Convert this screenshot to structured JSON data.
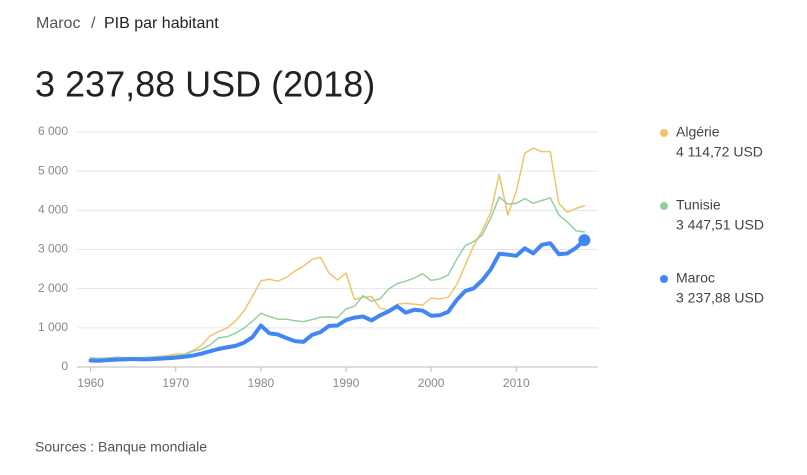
{
  "breadcrumb": {
    "parent": "Maroc",
    "separator": "/",
    "current": "PIB par habitant"
  },
  "headline": "3 237,88 USD (2018)",
  "source": "Sources : Banque mondiale",
  "chart_data": {
    "type": "line",
    "x": [
      1960,
      1961,
      1962,
      1963,
      1964,
      1965,
      1966,
      1967,
      1968,
      1969,
      1970,
      1971,
      1972,
      1973,
      1974,
      1975,
      1976,
      1977,
      1978,
      1979,
      1980,
      1981,
      1982,
      1983,
      1984,
      1985,
      1986,
      1987,
      1988,
      1989,
      1990,
      1991,
      1992,
      1993,
      1994,
      1995,
      1996,
      1997,
      1998,
      1999,
      2000,
      2001,
      2002,
      2003,
      2004,
      2005,
      2006,
      2007,
      2008,
      2009,
      2010,
      2011,
      2012,
      2013,
      2014,
      2015,
      2016,
      2017,
      2018
    ],
    "xlim": [
      1958.4,
      2019.6
    ],
    "xticks": [
      1960,
      1970,
      1980,
      1990,
      2000,
      2010
    ],
    "ylim": [
      0,
      6000
    ],
    "yticks": [
      {
        "value": 0,
        "label": "0"
      },
      {
        "value": 1000,
        "label": "1 000"
      },
      {
        "value": 2000,
        "label": "2 000"
      },
      {
        "value": 3000,
        "label": "3 000"
      },
      {
        "value": 4000,
        "label": "4 000"
      },
      {
        "value": 5000,
        "label": "5 000"
      },
      {
        "value": 6000,
        "label": "6 000"
      }
    ],
    "grid": true,
    "series": [
      {
        "name": "Algérie",
        "color": "#efc46b",
        "width": 1.5,
        "values": [
          240,
          210,
          170,
          210,
          230,
          240,
          230,
          245,
          270,
          290,
          330,
          330,
          420,
          550,
          790,
          900,
          990,
          1170,
          1430,
          1800,
          2200,
          2240,
          2190,
          2290,
          2450,
          2570,
          2750,
          2800,
          2400,
          2220,
          2400,
          1720,
          1780,
          1800,
          1500,
          1450,
          1600,
          1630,
          1600,
          1580,
          1760,
          1740,
          1780,
          2100,
          2600,
          3100,
          3480,
          3950,
          4920,
          3880,
          4480,
          5460,
          5590,
          5500,
          5500,
          4180,
          3950,
          4050,
          4114.72
        ],
        "value_labels": [
          null,
          null,
          null,
          null,
          null,
          null,
          null,
          null,
          null,
          null,
          null,
          null,
          null,
          null,
          null,
          null,
          null,
          null,
          null,
          null,
          null,
          null,
          null,
          null,
          null,
          null,
          null,
          null,
          null,
          null,
          null,
          null,
          null,
          null,
          null,
          null,
          null,
          null,
          null,
          null,
          null,
          null,
          null,
          null,
          null,
          null,
          null,
          null,
          null,
          null,
          null,
          null,
          null,
          null,
          null,
          null,
          null,
          null,
          "4 114,72 USD"
        ]
      },
      {
        "name": "Tunisie",
        "color": "#94cfa0",
        "width": 1.5,
        "values": [
          210,
          220,
          230,
          250,
          240,
          230,
          240,
          250,
          260,
          270,
          280,
          310,
          400,
          450,
          560,
          740,
          770,
          860,
          990,
          1170,
          1370,
          1290,
          1220,
          1220,
          1180,
          1160,
          1210,
          1270,
          1280,
          1260,
          1480,
          1550,
          1820,
          1680,
          1740,
          1990,
          2130,
          2190,
          2270,
          2380,
          2210,
          2250,
          2350,
          2750,
          3100,
          3200,
          3370,
          3800,
          4340,
          4160,
          4180,
          4300,
          4180,
          4250,
          4320,
          3880,
          3700,
          3480,
          3447.51
        ],
        "value_labels": [
          null,
          null,
          null,
          null,
          null,
          null,
          null,
          null,
          null,
          null,
          null,
          null,
          null,
          null,
          null,
          null,
          null,
          null,
          null,
          null,
          null,
          null,
          null,
          null,
          null,
          null,
          null,
          null,
          null,
          null,
          null,
          null,
          null,
          null,
          null,
          null,
          null,
          null,
          null,
          null,
          null,
          null,
          null,
          null,
          null,
          null,
          null,
          null,
          null,
          null,
          null,
          null,
          null,
          null,
          null,
          null,
          null,
          null,
          "3 447,51 USD"
        ]
      },
      {
        "name": "Maroc",
        "color": "#4285f4",
        "width": 4,
        "values": [
          165,
          160,
          175,
          190,
          195,
          205,
          195,
          200,
          210,
          225,
          240,
          260,
          290,
          340,
          400,
          460,
          500,
          540,
          620,
          760,
          1060,
          860,
          830,
          740,
          660,
          640,
          820,
          890,
          1050,
          1060,
          1200,
          1260,
          1290,
          1190,
          1320,
          1420,
          1550,
          1390,
          1460,
          1440,
          1310,
          1320,
          1410,
          1710,
          1940,
          2010,
          2210,
          2490,
          2890,
          2870,
          2840,
          3030,
          2900,
          3120,
          3160,
          2880,
          2900,
          3040,
          3237.88
        ],
        "value_labels": [
          null,
          null,
          null,
          null,
          null,
          null,
          null,
          null,
          null,
          null,
          null,
          null,
          null,
          null,
          null,
          null,
          null,
          null,
          null,
          null,
          null,
          null,
          null,
          null,
          null,
          null,
          null,
          null,
          null,
          null,
          null,
          null,
          null,
          null,
          null,
          null,
          null,
          null,
          null,
          null,
          null,
          null,
          null,
          null,
          null,
          null,
          null,
          null,
          null,
          null,
          null,
          null,
          null,
          null,
          null,
          null,
          null,
          null,
          "3 237,88 USD"
        ]
      }
    ]
  }
}
